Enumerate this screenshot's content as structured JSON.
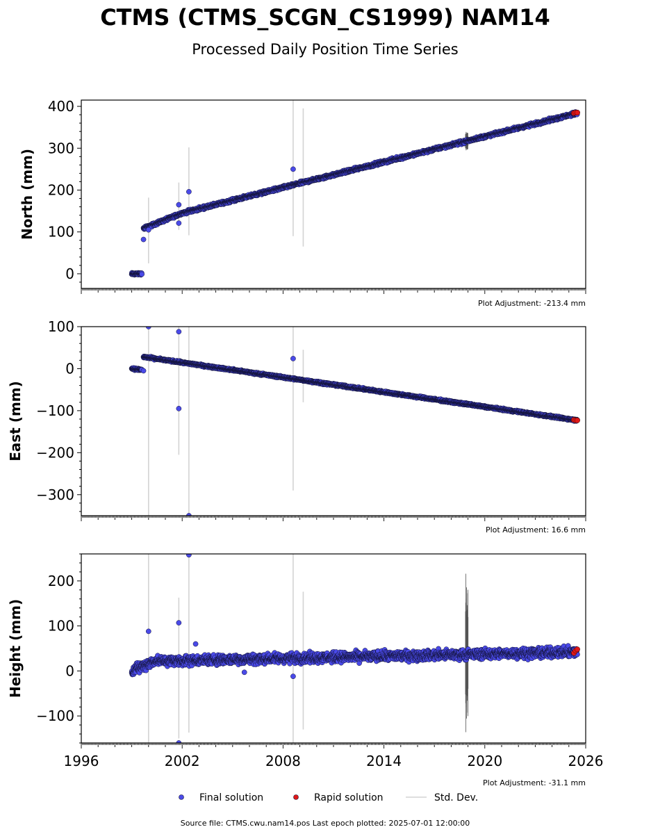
{
  "title": "CTMS (CTMS_SCGN_CS1999) NAM14",
  "subtitle": "Processed Daily Position Time Series",
  "legend": {
    "final": "Final solution",
    "rapid": "Rapid solution",
    "std": "Std. Dev."
  },
  "footer": "Source file: CTMS.cwu.nam14.pos  Last epoch plotted: 2025-07-01 12:00:00",
  "colors": {
    "final": "#4a4ae8",
    "rapid": "#e01818",
    "std": "#d3d3d3",
    "outline": "#111133"
  },
  "chart_data": [
    {
      "type": "scatter",
      "ylabel": "North (mm)",
      "adjustment": "Plot Adjustment: -213.4 mm",
      "xlim": [
        1996,
        2026
      ],
      "ylim": [
        -35,
        415
      ],
      "yticks": [
        0,
        100,
        200,
        300,
        400
      ],
      "series": [
        {
          "name": "Final solution",
          "segments": [
            {
              "x0": 1999.0,
              "x1": 1999.6,
              "y0": 0,
              "y1": 0,
              "noise": 2
            },
            {
              "x0": 1999.7,
              "x1": 2002.0,
              "y0": 108,
              "y1": 145,
              "noise": 3
            },
            {
              "x0": 2002.0,
              "x1": 2025.5,
              "y0": 145,
              "y1": 384,
              "noise": 3
            }
          ],
          "outliers": [
            [
              1999.7,
              82
            ],
            [
              2000.0,
              105
            ],
            [
              2001.8,
              165
            ],
            [
              2001.8,
              121
            ],
            [
              2002.4,
              196
            ],
            [
              2008.6,
              250
            ]
          ]
        },
        {
          "name": "Rapid solution",
          "x": [
            2025.3,
            2025.4,
            2025.5
          ],
          "y": [
            384,
            385,
            385
          ]
        }
      ],
      "std_dev_bars": [
        [
          2000.0,
          25,
          182
        ],
        [
          2001.8,
          105,
          218
        ],
        [
          2002.4,
          92,
          302
        ],
        [
          2008.6,
          90,
          420
        ],
        [
          2009.2,
          65,
          395
        ]
      ]
    },
    {
      "type": "scatter",
      "ylabel": "East (mm)",
      "adjustment": "Plot Adjustment: 16.6 mm",
      "xlim": [
        1996,
        2026
      ],
      "ylim": [
        -350,
        100
      ],
      "yticks": [
        100,
        0,
        -100,
        -200,
        -300
      ],
      "series": [
        {
          "name": "Final solution",
          "segments": [
            {
              "x0": 1999.0,
              "x1": 1999.6,
              "y0": 0,
              "y1": -3,
              "noise": 2
            },
            {
              "x0": 1999.7,
              "x1": 2025.5,
              "y0": 28,
              "y1": -123,
              "noise": 2
            }
          ],
          "outliers": [
            [
              1999.7,
              -5
            ],
            [
              2000.0,
              100
            ],
            [
              2001.8,
              88
            ],
            [
              2001.8,
              -95
            ],
            [
              2002.4,
              -350
            ],
            [
              2008.6,
              24
            ]
          ]
        },
        {
          "name": "Rapid solution",
          "x": [
            2025.3,
            2025.4,
            2025.5
          ],
          "y": [
            -122,
            -123,
            -123
          ]
        }
      ],
      "std_dev_bars": [
        [
          2000.0,
          -350,
          100
        ],
        [
          2001.8,
          -205,
          105
        ],
        [
          2002.4,
          -350,
          100
        ],
        [
          2008.6,
          -290,
          100
        ],
        [
          2009.2,
          -80,
          45
        ]
      ]
    },
    {
      "type": "scatter",
      "ylabel": "Height (mm)",
      "adjustment": "Plot Adjustment: -31.1 mm",
      "xlim": [
        1996,
        2026
      ],
      "ylim": [
        -160,
        260
      ],
      "yticks": [
        200,
        100,
        0,
        -100
      ],
      "xticks": [
        1996,
        2002,
        2008,
        2014,
        2020,
        2026
      ],
      "series": [
        {
          "name": "Final solution",
          "segments": [
            {
              "x0": 1999.0,
              "x1": 2000.5,
              "y0": 0,
              "y1": 25,
              "noise": 10
            },
            {
              "x0": 2000.5,
              "x1": 2025.5,
              "y0": 22,
              "y1": 42,
              "noise": 9
            }
          ],
          "outliers": [
            [
              2000.0,
              88
            ],
            [
              2001.8,
              107
            ],
            [
              2001.8,
              -160
            ],
            [
              2002.4,
              258
            ],
            [
              2002.8,
              60
            ],
            [
              2005.7,
              -3
            ],
            [
              2008.6,
              -12
            ]
          ]
        },
        {
          "name": "Rapid solution",
          "x": [
            2025.3,
            2025.4,
            2025.5
          ],
          "y": [
            40,
            45,
            48
          ]
        }
      ],
      "std_dev_bars": [
        [
          2000.0,
          -160,
          260
        ],
        [
          2001.8,
          -150,
          163
        ],
        [
          2002.4,
          -137,
          260
        ],
        [
          2008.6,
          -160,
          260
        ],
        [
          2009.2,
          -130,
          176
        ]
      ]
    }
  ]
}
